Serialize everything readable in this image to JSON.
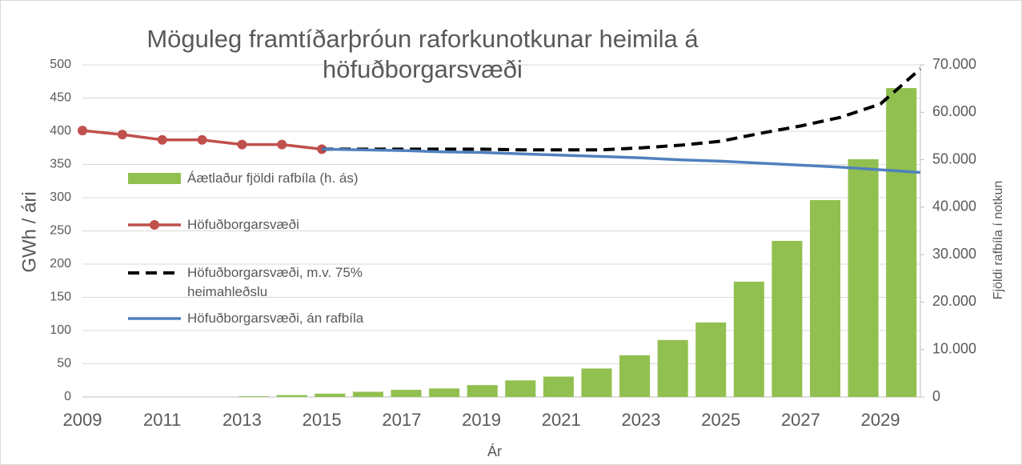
{
  "chart_data": {
    "type": "combo",
    "title": "Möguleg framtíðarþróun raforkunotkunar heimila á höfuðborgarsvæði",
    "xlabel": "Ár",
    "ylabel": "GWh / ári",
    "y2label": "Fjöldi rafbíla í notkun",
    "xlim": [
      2009,
      2030
    ],
    "xticks": [
      2009,
      2011,
      2013,
      2015,
      2017,
      2019,
      2021,
      2023,
      2025,
      2027,
      2029
    ],
    "ylim": [
      0,
      500
    ],
    "yticks": [
      0,
      50,
      100,
      150,
      200,
      250,
      300,
      350,
      400,
      450,
      500
    ],
    "y2lim": [
      0,
      70000
    ],
    "y2ticks": [
      {
        "value": 0,
        "label": "0"
      },
      {
        "value": 10000,
        "label": "10.000"
      },
      {
        "value": 20000,
        "label": "20.000"
      },
      {
        "value": 30000,
        "label": "30.000"
      },
      {
        "value": 40000,
        "label": "40.000"
      },
      {
        "value": 50000,
        "label": "50.000"
      },
      {
        "value": 60000,
        "label": "60.000"
      },
      {
        "value": 70000,
        "label": "70.000"
      }
    ],
    "categories": [
      2009,
      2010,
      2011,
      2012,
      2013,
      2014,
      2015,
      2016,
      2017,
      2018,
      2019,
      2020,
      2021,
      2022,
      2023,
      2024,
      2025,
      2026,
      2027,
      2028,
      2029,
      2030
    ],
    "series": [
      {
        "name": "Áætlaður fjöldi rafbíla (h. ás)",
        "type": "bar",
        "axis": "y2",
        "color": "#92c050",
        "values": [
          0,
          0,
          0,
          0,
          150,
          400,
          700,
          1100,
          1500,
          1800,
          2500,
          3500,
          4300,
          6000,
          8800,
          12000,
          15700,
          24300,
          32900,
          41500,
          50100,
          65100
        ]
      },
      {
        "name": "Höfuðborgarsvæði",
        "type": "line",
        "color": "#c0504d",
        "marker": true,
        "x": [
          2009,
          2010,
          2011,
          2012,
          2013,
          2014,
          2015
        ],
        "values": [
          401,
          395,
          387,
          387,
          380,
          380,
          373
        ]
      },
      {
        "name": "Höfuðborgarsvæði, m.v. 75% heimahleðslu",
        "type": "line",
        "color": "#000000",
        "dash": true,
        "x": [
          2015,
          2016,
          2017,
          2018,
          2019,
          2020,
          2021,
          2022,
          2023,
          2024,
          2025,
          2026,
          2027,
          2028,
          2029,
          2030
        ],
        "values": [
          373,
          373,
          373,
          373,
          373,
          372,
          372,
          372,
          375,
          379,
          385,
          397,
          408,
          421,
          441,
          494
        ]
      },
      {
        "name": "Höfuðborgarsvæði, án rafbíla",
        "type": "line",
        "color": "#4f81bd",
        "x": [
          2015,
          2016,
          2017,
          2018,
          2019,
          2020,
          2021,
          2022,
          2023,
          2024,
          2025,
          2026,
          2027,
          2028,
          2029,
          2030
        ],
        "values": [
          373,
          372,
          371,
          369,
          368,
          366,
          364,
          362,
          360,
          357,
          355,
          352,
          349,
          346,
          342,
          338
        ]
      }
    ]
  }
}
